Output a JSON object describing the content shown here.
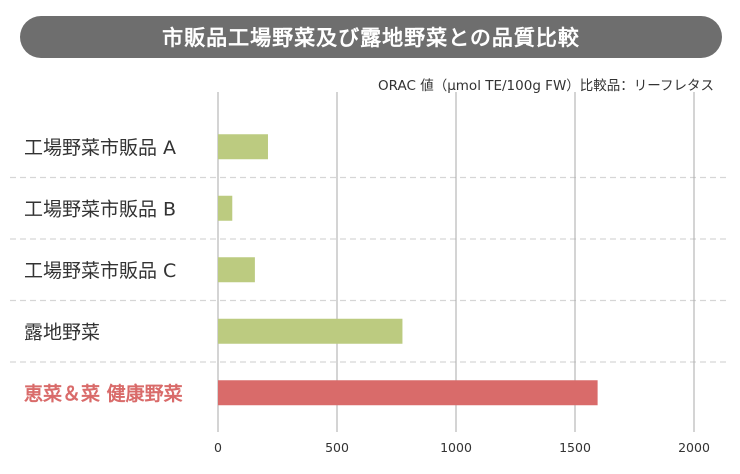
{
  "title": "市販品工場野菜及び露地野菜との品質比較",
  "subtitle": "ORAC 値（μmol TE/100g FW）比較品：リーフレタス",
  "colors": {
    "title_bg": "#6e6e6e",
    "bar_default": "#bccb80",
    "bar_highlight": "#d96b6a",
    "label_highlight": "#d96b6a",
    "grid": "#aaaaaa",
    "separator": "#d6d6d6"
  },
  "chart_data": {
    "type": "bar",
    "orientation": "horizontal",
    "categories": [
      "工場野菜市販品 A",
      "工場野菜市販品 B",
      "工場野菜市販品 C",
      "露地野菜",
      "恵菜＆菜 健康野菜"
    ],
    "values": [
      210,
      60,
      155,
      775,
      1595
    ],
    "highlight": [
      false,
      false,
      false,
      false,
      true
    ],
    "xlim": [
      0,
      2000
    ],
    "xticks": [
      0,
      500,
      1000,
      1500,
      2000
    ],
    "grid": true,
    "legend": false
  }
}
